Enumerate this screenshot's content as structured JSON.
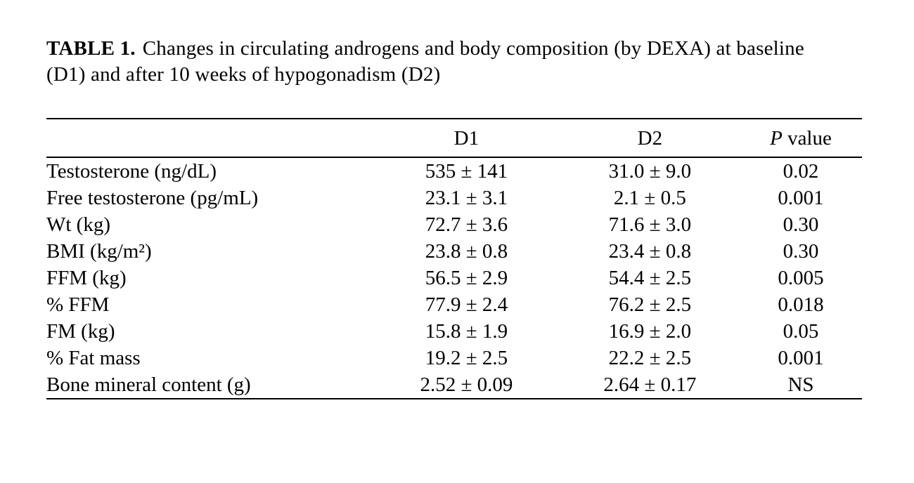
{
  "caption": {
    "label": "TABLE 1.",
    "text": "Changes in circulating androgens and body composition (by DEXA) at baseline (D1) and after 10 weeks of hypogonadism (D2)"
  },
  "table": {
    "header": {
      "d1": "D1",
      "d2": "D2",
      "p_italic": "P",
      "p_rest": " value"
    },
    "rows": [
      {
        "label": "Testosterone (ng/dL)",
        "d1": "535 ± 141",
        "d2": "31.0 ± 9.0",
        "p": "0.02"
      },
      {
        "label": "Free testosterone (pg/mL)",
        "d1": "23.1 ± 3.1",
        "d2": "2.1 ± 0.5",
        "p": "0.001"
      },
      {
        "label": "Wt (kg)",
        "d1": "72.7 ± 3.6",
        "d2": "71.6 ± 3.0",
        "p": "0.30"
      },
      {
        "label": "BMI (kg/m²)",
        "d1": "23.8 ± 0.8",
        "d2": "23.4 ± 0.8",
        "p": "0.30"
      },
      {
        "label": "FFM (kg)",
        "d1": "56.5 ± 2.9",
        "d2": "54.4 ± 2.5",
        "p": "0.005"
      },
      {
        "label": "% FFM",
        "d1": "77.9 ± 2.4",
        "d2": "76.2 ± 2.5",
        "p": "0.018"
      },
      {
        "label": "FM (kg)",
        "d1": "15.8 ± 1.9",
        "d2": "16.9 ± 2.0",
        "p": "0.05"
      },
      {
        "label": "% Fat mass",
        "d1": "19.2 ± 2.5",
        "d2": "22.2 ± 2.5",
        "p": "0.001"
      },
      {
        "label": "Bone mineral content (g)",
        "d1": "2.52 ± 0.09",
        "d2": "2.64 ± 0.17",
        "p": "NS"
      }
    ]
  }
}
